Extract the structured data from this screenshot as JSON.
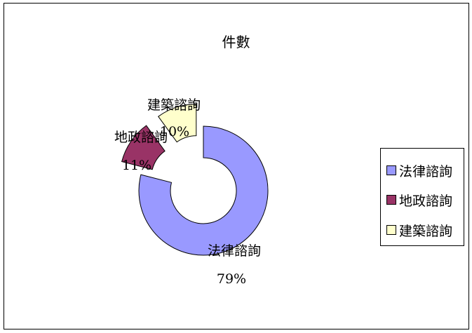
{
  "chart_data": {
    "type": "pie",
    "variant": "exploded-doughnut",
    "title": "件數",
    "categories": [
      "法律諮詢",
      "地政諮詢",
      "建築諮詢"
    ],
    "values": [
      79,
      11,
      10
    ],
    "value_labels": [
      "79%",
      "11%",
      "10%"
    ],
    "colors": [
      "#9999ff",
      "#993366",
      "#ffffcc"
    ],
    "legend_position": "right"
  }
}
